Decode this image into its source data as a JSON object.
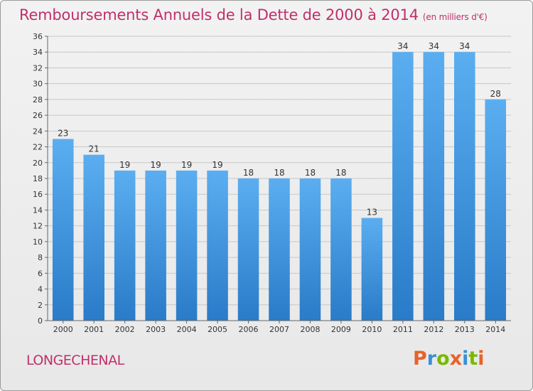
{
  "header": {
    "title": "Remboursements Annuels de la Dette de 2000 à 2014",
    "unit": "(en milliers d'€)"
  },
  "footer": {
    "commune": "LONGECHENAL",
    "logo_letters": [
      "P",
      "r",
      "o",
      "x",
      "i",
      "t",
      "i"
    ],
    "logo_colors": [
      "#e8622a",
      "#3a8fd6",
      "#7ab800",
      "#e8622a",
      "#3a8fd6",
      "#7ab800",
      "#e8622a"
    ]
  },
  "chart_data": {
    "type": "bar",
    "title": "Remboursements Annuels de la Dette de 2000 à 2014",
    "xlabel": "",
    "ylabel": "",
    "categories": [
      "2000",
      "2001",
      "2002",
      "2003",
      "2004",
      "2005",
      "2006",
      "2007",
      "2008",
      "2009",
      "2010",
      "2011",
      "2012",
      "2013",
      "2014"
    ],
    "values": [
      23,
      21,
      19,
      19,
      19,
      19,
      18,
      18,
      18,
      18,
      13,
      34,
      34,
      34,
      28
    ],
    "ylim": [
      0,
      36
    ],
    "yticks": [
      0,
      2,
      4,
      6,
      8,
      10,
      12,
      14,
      16,
      18,
      20,
      22,
      24,
      26,
      28,
      30,
      32,
      34,
      36
    ],
    "grid": true,
    "bar_color_top": "#5aaef0",
    "bar_color_bottom": "#2a7bc8",
    "grid_color": "#c8c8c8"
  }
}
